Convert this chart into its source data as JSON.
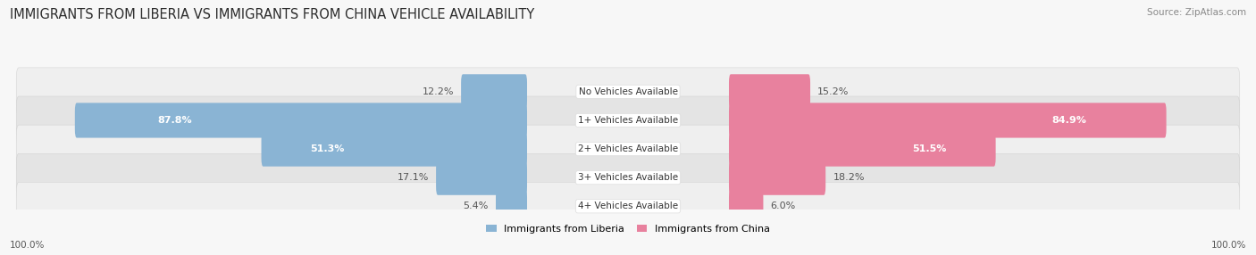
{
  "title": "IMMIGRANTS FROM LIBERIA VS IMMIGRANTS FROM CHINA VEHICLE AVAILABILITY",
  "source": "Source: ZipAtlas.com",
  "categories": [
    "No Vehicles Available",
    "1+ Vehicles Available",
    "2+ Vehicles Available",
    "3+ Vehicles Available",
    "4+ Vehicles Available"
  ],
  "liberia_values": [
    12.2,
    87.8,
    51.3,
    17.1,
    5.4
  ],
  "china_values": [
    15.2,
    84.9,
    51.5,
    18.2,
    6.0
  ],
  "liberia_color": "#8ab4d4",
  "china_color": "#e8819e",
  "liberia_color_light": "#b8d3e8",
  "china_color_light": "#f0afc0",
  "row_bg_odd": "#efefef",
  "row_bg_even": "#e4e4e4",
  "label_bg_color": "#ffffff",
  "title_fontsize": 10.5,
  "source_fontsize": 7.5,
  "bar_label_fontsize": 8,
  "category_fontsize": 7.5,
  "legend_fontsize": 8,
  "footer_fontsize": 7.5,
  "max_value": 100.0
}
